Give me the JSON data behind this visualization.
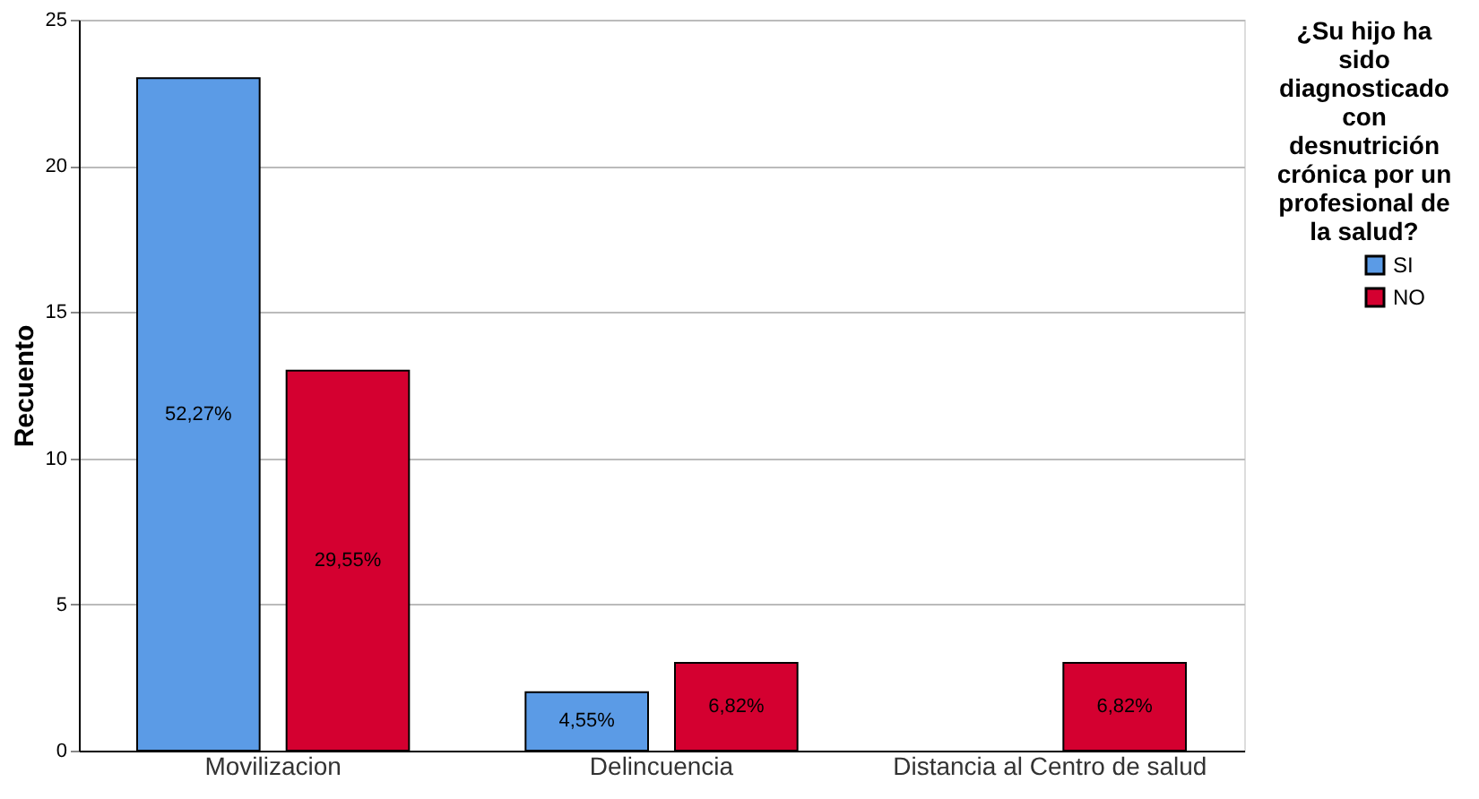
{
  "chart_data": {
    "type": "bar",
    "ylabel": "Recuento",
    "legend_title": "¿Su hijo ha sido diagnosticado con desnutrición crónica por un profesional de la salud?",
    "categories": [
      "Movilizacion",
      "Delincuencia",
      "Distancia al Centro de salud"
    ],
    "series": [
      {
        "name": "SI",
        "color": "#5b9be6",
        "values": [
          23,
          2,
          null
        ]
      },
      {
        "name": "NO",
        "color": "#d40030",
        "values": [
          13,
          3,
          3
        ]
      }
    ],
    "annotations": [
      "52,27%",
      "29,55%",
      "4,55%",
      "6,82%",
      "6,82%"
    ],
    "ylim": [
      0,
      25
    ],
    "yticks": [
      0,
      5,
      10,
      15,
      20,
      25
    ],
    "grid": "y",
    "legend": "top right"
  }
}
